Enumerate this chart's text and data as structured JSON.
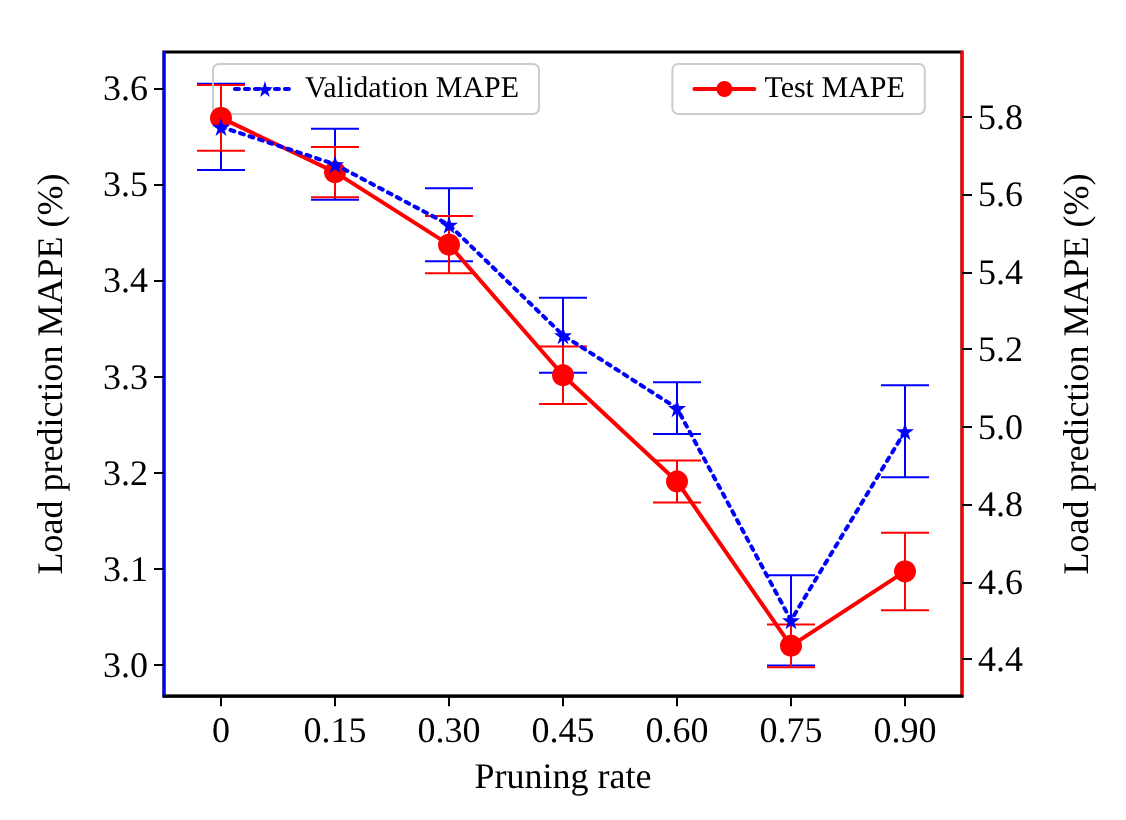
{
  "chart_data": {
    "type": "line",
    "xlabel": "Pruning rate",
    "ylabel": "Load prediction MAPE (%)",
    "y2label": "Load prediction MAPE (%)",
    "categories": [
      "0",
      "0.15",
      "0.30",
      "0.45",
      "0.60",
      "0.75",
      "0.90"
    ],
    "series": [
      {
        "name": "Validation MAPE",
        "color": "#0000ff",
        "marker": "star",
        "line_style": "dotted",
        "values": [
          3.56,
          3.521,
          3.458,
          3.343,
          3.267,
          3.046,
          3.243
        ],
        "errors": [
          0.045,
          0.037,
          0.038,
          0.039,
          0.027,
          0.047,
          0.048
        ]
      },
      {
        "name": "Test MAPE",
        "color": "#ff0000",
        "marker": "circle",
        "line_style": "solid",
        "axis": "y2",
        "values": [
          5.797,
          5.657,
          5.47,
          5.133,
          4.859,
          4.435,
          4.627
        ],
        "errors": [
          0.085,
          0.065,
          0.074,
          0.074,
          0.054,
          0.055,
          0.1
        ]
      }
    ],
    "ylim": [
      2.967,
      3.638
    ],
    "yticks": [
      {
        "value": 3,
        "label": "3.0"
      },
      3.1,
      3.2,
      3.3,
      3.4,
      3.5,
      3.6
    ],
    "y2lim": [
      4.305,
      5.967
    ],
    "y2ticks": [
      4.4,
      4.6,
      4.8,
      {
        "value": 5,
        "label": "5.0"
      },
      5.2,
      5.4,
      5.6,
      5.8
    ],
    "grid": false,
    "legend": "top"
  }
}
